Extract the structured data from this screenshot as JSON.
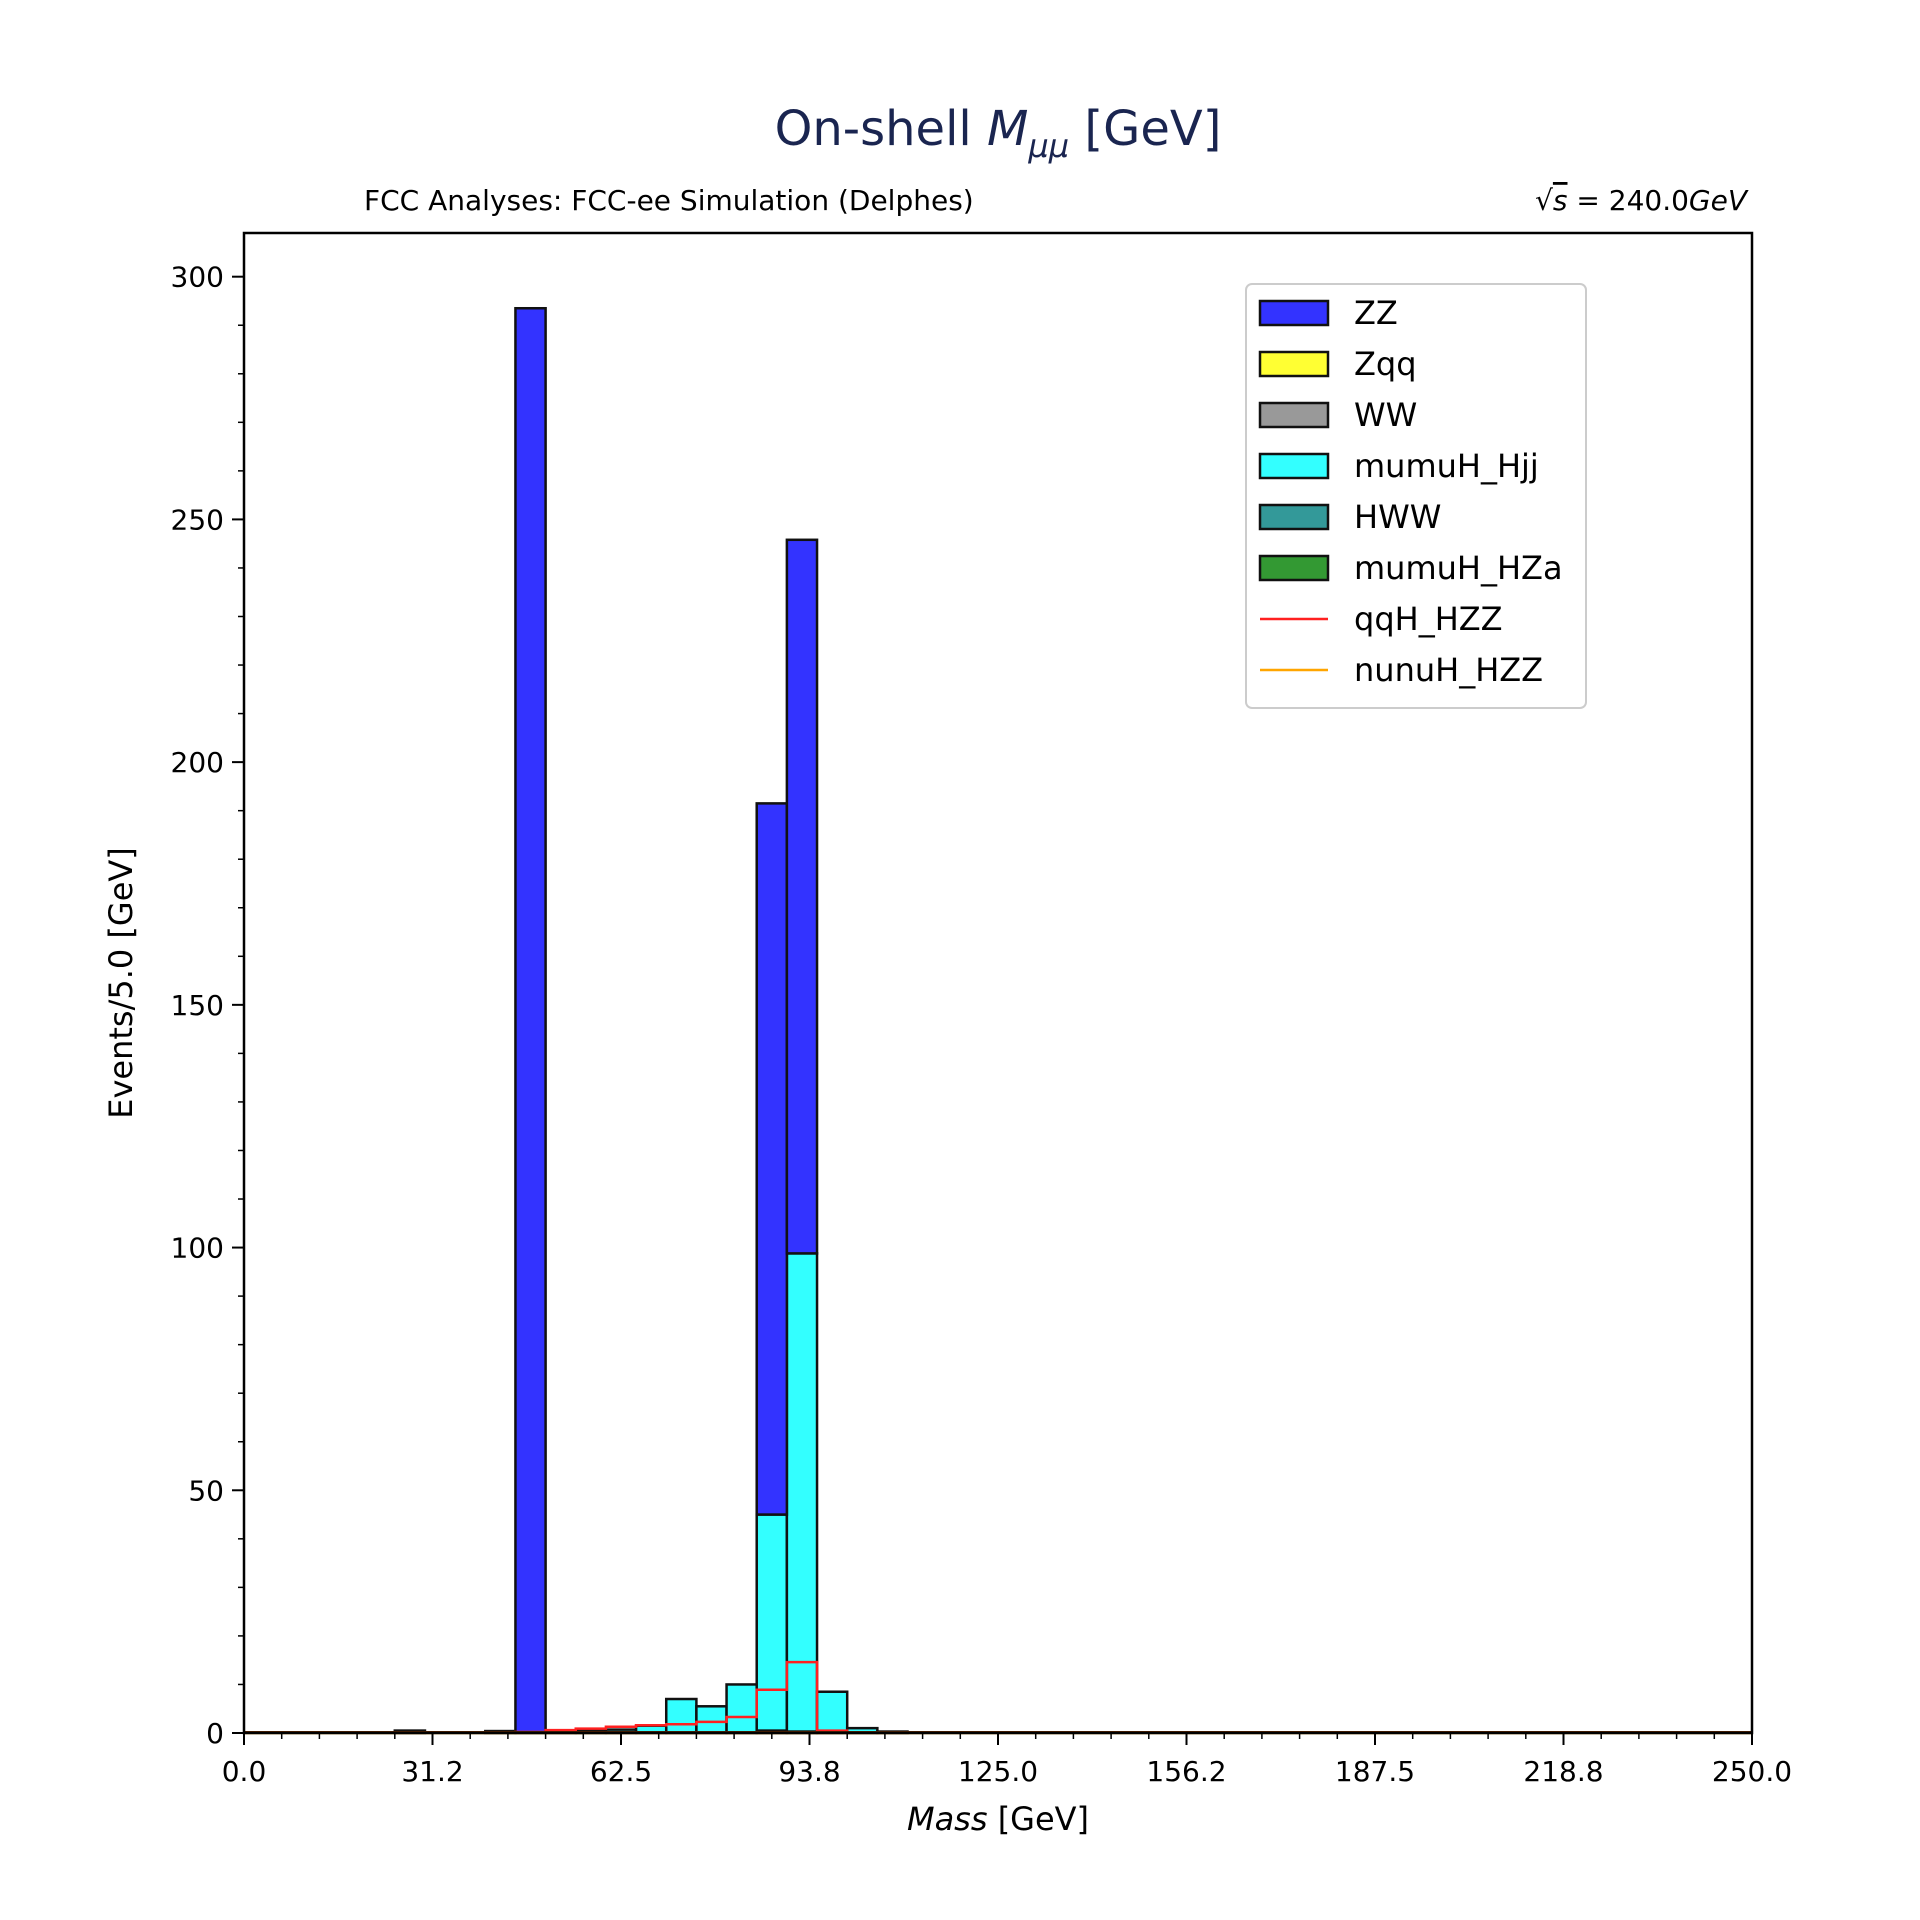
{
  "chart_data": {
    "type": "bar",
    "title_main": "On-shell ",
    "title_var": "M",
    "title_sub": "μμ",
    "title_unit": " [GeV]",
    "subtitle_left": "FCC Analyses: FCC-ee Simulation (Delphes)",
    "subtitle_right_sqrt": "√",
    "subtitle_right_s": "s",
    "subtitle_right_value": " = 240.0",
    "subtitle_right_unit": "GeV",
    "xlabel_var": "Mass",
    "xlabel_unit": " [GeV]",
    "ylabel": "Events/5.0 [GeV]",
    "xlim": [
      0,
      250
    ],
    "ylim": [
      0,
      300
    ],
    "yaxis_max": 309,
    "bin_width": 5,
    "xticks": [
      "0.0",
      "31.2",
      "62.5",
      "93.8",
      "125.0",
      "156.2",
      "187.5",
      "218.8",
      "250.0"
    ],
    "yticks": [
      "0",
      "50",
      "100",
      "150",
      "200",
      "250",
      "300"
    ],
    "legend_position": "upper-right",
    "stacked_series": [
      {
        "name": "HWW",
        "color": "#339999",
        "bins": [
          {
            "x0": 85,
            "x1": 90,
            "value": 0.5
          },
          {
            "x0": 90,
            "x1": 95,
            "value": 0.3
          }
        ]
      },
      {
        "name": "mumuH_Hjj",
        "color": "#33FFFF",
        "bins": [
          {
            "x0": 25,
            "x1": 30,
            "value": 0.5
          },
          {
            "x0": 40,
            "x1": 45,
            "value": 0.4
          },
          {
            "x0": 50,
            "x1": 55,
            "value": 0.3
          },
          {
            "x0": 55,
            "x1": 60,
            "value": 0.5
          },
          {
            "x0": 60,
            "x1": 65,
            "value": 0.7
          },
          {
            "x0": 65,
            "x1": 70,
            "value": 1.5
          },
          {
            "x0": 70,
            "x1": 75,
            "value": 7
          },
          {
            "x0": 75,
            "x1": 80,
            "value": 5.5
          },
          {
            "x0": 80,
            "x1": 85,
            "value": 10
          },
          {
            "x0": 85,
            "x1": 90,
            "value": 44.5
          },
          {
            "x0": 90,
            "x1": 95,
            "value": 98.5
          },
          {
            "x0": 95,
            "x1": 100,
            "value": 8.5
          },
          {
            "x0": 100,
            "x1": 105,
            "value": 1
          },
          {
            "x0": 105,
            "x1": 110,
            "value": 0.3
          }
        ]
      },
      {
        "name": "ZZ",
        "color": "#3333FF",
        "bins": [
          {
            "x0": 45,
            "x1": 50,
            "value": 293.5
          },
          {
            "x0": 85,
            "x1": 90,
            "value": 146.5
          },
          {
            "x0": 90,
            "x1": 95,
            "value": 147
          }
        ]
      }
    ],
    "line_series": [
      {
        "name": "qqH_HZZ",
        "color": "#FF2020",
        "bins": [
          {
            "x0": 45,
            "x1": 50,
            "value": 0.2
          },
          {
            "x0": 50,
            "x1": 55,
            "value": 0.6
          },
          {
            "x0": 55,
            "x1": 60,
            "value": 0.9
          },
          {
            "x0": 60,
            "x1": 65,
            "value": 1.3
          },
          {
            "x0": 65,
            "x1": 70,
            "value": 1.6
          },
          {
            "x0": 70,
            "x1": 75,
            "value": 1.8
          },
          {
            "x0": 75,
            "x1": 80,
            "value": 2.3
          },
          {
            "x0": 80,
            "x1": 85,
            "value": 3.3
          },
          {
            "x0": 85,
            "x1": 90,
            "value": 8.9
          },
          {
            "x0": 90,
            "x1": 95,
            "value": 14.6
          },
          {
            "x0": 95,
            "x1": 100,
            "value": 0.5
          }
        ]
      },
      {
        "name": "nunuH_HZZ",
        "color": "#FFA500",
        "bins": [
          {
            "x0": 0,
            "x1": 250,
            "value": 0
          }
        ]
      }
    ],
    "legend": [
      {
        "name": "ZZ",
        "kind": "patch",
        "color": "#3333FF"
      },
      {
        "name": "Zqq",
        "kind": "patch",
        "color": "#FFFF33"
      },
      {
        "name": "WW",
        "kind": "patch",
        "color": "#999999"
      },
      {
        "name": "mumuH_Hjj",
        "kind": "patch",
        "color": "#33FFFF"
      },
      {
        "name": "HWW",
        "kind": "patch",
        "color": "#339999"
      },
      {
        "name": "mumuH_HZa",
        "kind": "patch",
        "color": "#339933"
      },
      {
        "name": "qqH_HZZ",
        "kind": "line",
        "color": "#FF2020"
      },
      {
        "name": "nunuH_HZZ",
        "kind": "line",
        "color": "#FFA500"
      }
    ]
  }
}
